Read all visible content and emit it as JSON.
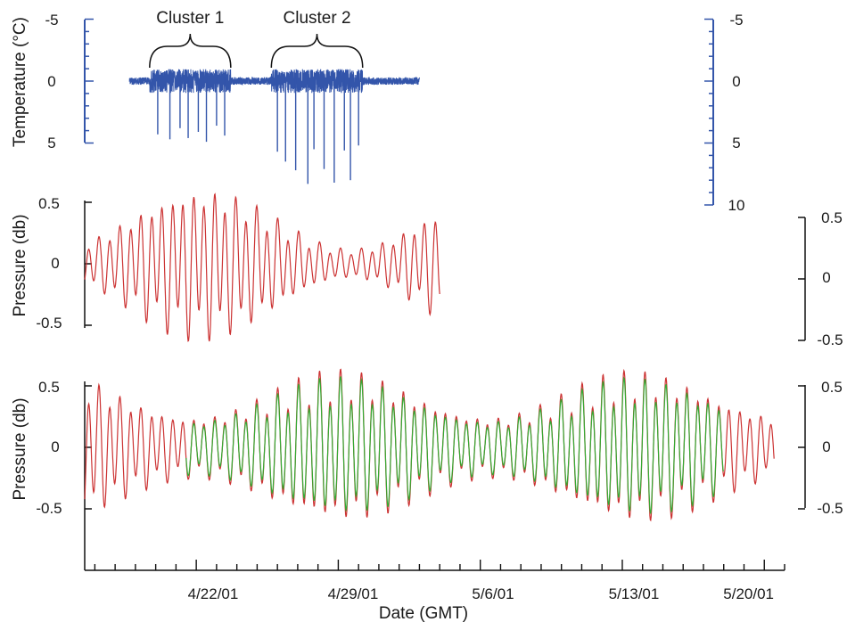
{
  "chart_data": [
    {
      "type": "line",
      "panel": "temperature",
      "ylabel": "Temperature (°C)",
      "ylim_left": [
        5,
        -5
      ],
      "ylim_right": [
        10,
        -5
      ],
      "yticks_left": [
        "-5",
        "0",
        "5"
      ],
      "yticks_right": [
        "-5",
        "0",
        "5",
        "10"
      ],
      "annotations": [
        "Cluster 1",
        "Cluster 2"
      ],
      "clusters": [
        {
          "name": "Cluster 1",
          "start": 19.7,
          "end": 23.7
        },
        {
          "name": "Cluster 2",
          "start": 25.7,
          "end": 30.2
        }
      ],
      "series": [
        {
          "color": "#3355aa",
          "x_range": [
            18.7,
            33.0
          ],
          "baseline_noise": 0.3,
          "spikes": [
            {
              "x": 20.1,
              "y": 4.3
            },
            {
              "x": 20.7,
              "y": 4.7
            },
            {
              "x": 21.2,
              "y": 3.8
            },
            {
              "x": 21.6,
              "y": 4.6
            },
            {
              "x": 22.1,
              "y": 4.1
            },
            {
              "x": 22.5,
              "y": 4.9
            },
            {
              "x": 23.0,
              "y": 3.6
            },
            {
              "x": 23.4,
              "y": 4.4
            },
            {
              "x": 26.0,
              "y": 5.7
            },
            {
              "x": 26.4,
              "y": 6.5
            },
            {
              "x": 26.9,
              "y": 7.2
            },
            {
              "x": 27.5,
              "y": 8.3
            },
            {
              "x": 27.8,
              "y": 5.5
            },
            {
              "x": 28.3,
              "y": 7.1
            },
            {
              "x": 28.8,
              "y": 8.2
            },
            {
              "x": 29.3,
              "y": 5.6
            },
            {
              "x": 29.6,
              "y": 8.0
            },
            {
              "x": 30.0,
              "y": 5.2
            }
          ]
        }
      ]
    },
    {
      "type": "line",
      "panel": "pressure-observed",
      "ylabel": "Pressure (db)",
      "ylim": [
        -0.55,
        0.55
      ],
      "yticks_left": [
        "0.5",
        "0",
        "-0.5"
      ],
      "yticks_right": [
        "0.5",
        "0",
        "-0.5"
      ],
      "series": [
        {
          "color": "#cc3333",
          "x_range": [
            16.5,
            34.0
          ],
          "model": "tidal",
          "amp_min": 0.12,
          "amp_max": 0.62,
          "amp_period_days": 14.6,
          "amp_peak_day": 22.3
        }
      ]
    },
    {
      "type": "line",
      "panel": "pressure-comparison",
      "ylabel": "Pressure (db)",
      "xlabel": "Date (GMT)",
      "ylim": [
        -0.55,
        0.55
      ],
      "yticks_left": [
        "0.5",
        "0",
        "-0.5"
      ],
      "yticks_right": [
        "0.5",
        "0",
        "-0.5"
      ],
      "x_tick_labels": [
        "4/22/01",
        "4/29/01",
        "5/6/01",
        "5/13/01",
        "5/20/01"
      ],
      "x_tick_values": [
        22,
        29,
        36,
        43,
        50
      ],
      "xlim": [
        16.5,
        51.0
      ],
      "series": [
        {
          "color": "#cc3333",
          "x_range": [
            16.5,
            50.5
          ],
          "model": "tidal",
          "amp_min": 0.25,
          "amp_max": 0.62,
          "amp_period_days": 14.6,
          "amp_peak_day": 29.2
        },
        {
          "color": "#33aa33",
          "x_range": [
            21.5,
            48.0
          ],
          "model": "tidal",
          "amp_min": 0.22,
          "amp_max": 0.56,
          "amp_period_days": 14.6,
          "amp_peak_day": 29.2
        }
      ]
    }
  ]
}
